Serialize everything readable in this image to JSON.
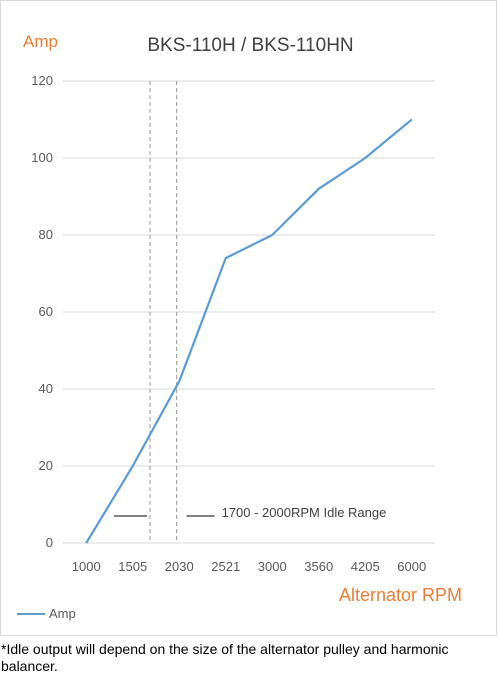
{
  "chart_data": {
    "type": "line",
    "title": "BKS-110H / BKS-110HN",
    "ylabel": "Amp",
    "xlabel": "Alternator RPM",
    "categories": [
      "1000",
      "1505",
      "2030",
      "2521",
      "3000",
      "3560",
      "4205",
      "6000"
    ],
    "series": [
      {
        "name": "Amp",
        "color": "#5b9bd5",
        "values": [
          0,
          20,
          42,
          74,
          80,
          92,
          100,
          110
        ]
      }
    ],
    "ylim": [
      0,
      120
    ],
    "yticks": [
      0,
      20,
      40,
      60,
      80,
      100,
      120
    ],
    "grid": true,
    "legend": "bottom-left",
    "annotation": {
      "label": "1700 - 2000RPM Idle Range",
      "range_start_rpm": 1700,
      "range_end_rpm": 2000,
      "style": "dashed"
    },
    "colors": {
      "series": "#5b9bd5",
      "axis_text": "#ed7d31",
      "grid": "#d9d9d9"
    }
  },
  "footnote": "*Idle output will depend on the size of the alternator pulley and harmonic balancer."
}
